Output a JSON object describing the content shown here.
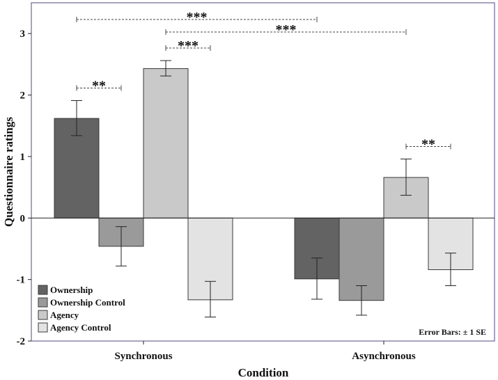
{
  "chart_data": {
    "type": "bar",
    "xlabel": "Condition",
    "ylabel": "Questionnaire ratings",
    "ylim": [
      -2,
      3.5
    ],
    "yticks": [
      -2,
      -1,
      0,
      1,
      2,
      3
    ],
    "categories": [
      "Synchronous",
      "Asynchronous"
    ],
    "series": [
      {
        "name": "Ownership",
        "color": "#636363",
        "values": [
          1.62,
          -0.99
        ],
        "err_lo": [
          1.34,
          -1.32
        ],
        "err_hi": [
          1.91,
          -0.65
        ]
      },
      {
        "name": "Ownership Control",
        "color": "#9a9a9a",
        "values": [
          -0.46,
          -1.34
        ],
        "err_lo": [
          -0.78,
          -1.58
        ],
        "err_hi": [
          -0.14,
          -1.1
        ]
      },
      {
        "name": "Agency",
        "color": "#c9c9c9",
        "values": [
          2.43,
          0.66
        ],
        "err_lo": [
          2.31,
          0.37
        ],
        "err_hi": [
          2.56,
          0.96
        ]
      },
      {
        "name": "Agency Control",
        "color": "#e3e3e3",
        "values": [
          -1.33,
          -0.84
        ],
        "err_lo": [
          -1.61,
          -1.1
        ],
        "err_hi": [
          -1.03,
          -0.57
        ]
      }
    ],
    "error_note": "Error Bars: ± 1 SE",
    "legend_position": "bottom-left",
    "significance": [
      {
        "label": "**",
        "from": [
          0,
          0
        ],
        "to": [
          0,
          1
        ],
        "level": 0
      },
      {
        "label": "***",
        "from": [
          0,
          2
        ],
        "to": [
          0,
          3
        ],
        "level": 0
      },
      {
        "label": "***",
        "from": [
          0,
          0
        ],
        "to": [
          1,
          0
        ],
        "level": 2
      },
      {
        "label": "***",
        "from": [
          0,
          2
        ],
        "to": [
          1,
          2
        ],
        "level": 1
      },
      {
        "label": "**",
        "from": [
          1,
          2
        ],
        "to": [
          1,
          3
        ],
        "level": 0
      }
    ]
  }
}
